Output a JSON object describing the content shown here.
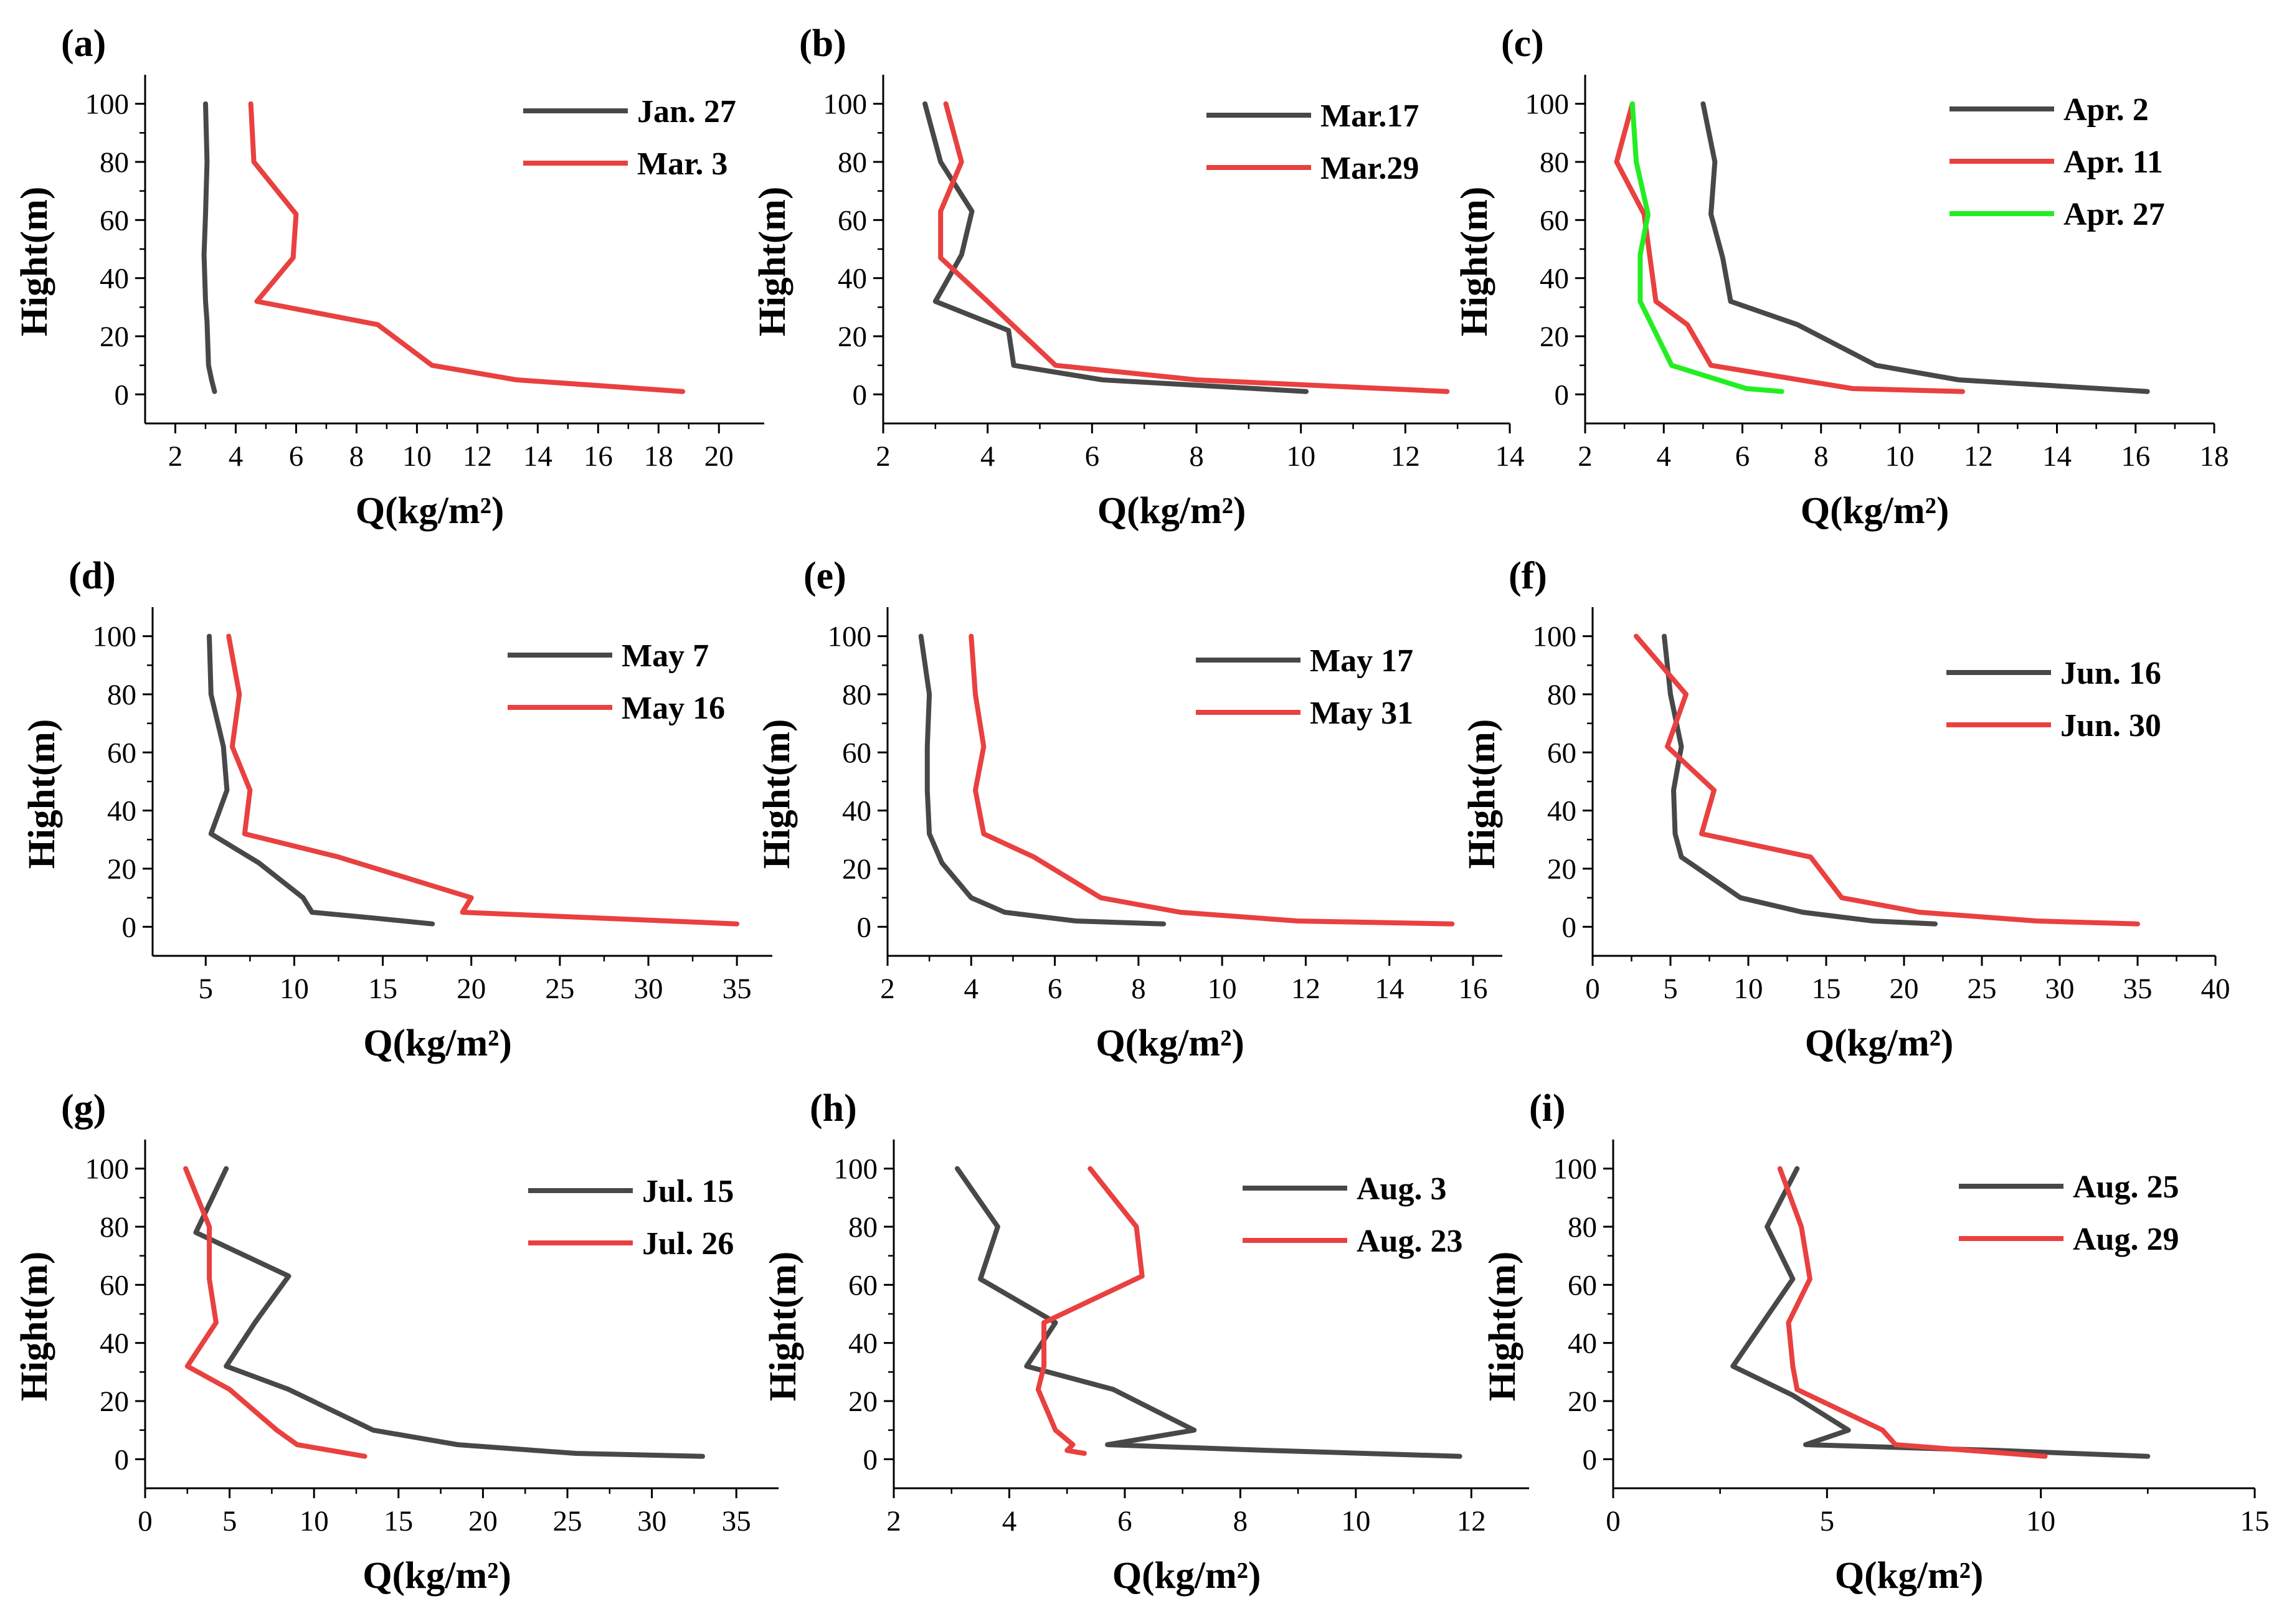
{
  "chart_data": [
    {
      "id": "a",
      "type": "line",
      "panel_label": "(a)",
      "xlabel": "Q(kg/m²)",
      "ylabel": "Hight(m)",
      "xlim": [
        1,
        21.5
      ],
      "ylim": [
        -10,
        110
      ],
      "xticks": [
        2,
        4,
        6,
        8,
        10,
        12,
        14,
        16,
        18,
        20
      ],
      "yticks": [
        0,
        20,
        40,
        60,
        80,
        100
      ],
      "legend_position": "top-right",
      "series": [
        {
          "name": "Jan. 27",
          "color": "#484848",
          "points": [
            [
              3.3,
              1
            ],
            [
              3.2,
              5
            ],
            [
              3.1,
              10
            ],
            [
              3.05,
              25
            ],
            [
              3.0,
              32
            ],
            [
              2.95,
              48
            ],
            [
              3.0,
              62
            ],
            [
              3.05,
              80
            ],
            [
              3.0,
              100
            ]
          ]
        },
        {
          "name": "Mar. 3",
          "color": "#E94040",
          "points": [
            [
              18.8,
              1
            ],
            [
              13.3,
              5
            ],
            [
              10.5,
              10
            ],
            [
              8.7,
              24
            ],
            [
              4.7,
              32
            ],
            [
              5.9,
              47
            ],
            [
              6.0,
              62
            ],
            [
              4.6,
              80
            ],
            [
              4.5,
              100
            ]
          ]
        }
      ]
    },
    {
      "id": "b",
      "type": "line",
      "panel_label": "(b)",
      "xlabel": "Q(kg/m²)",
      "ylabel": "Hight(m)",
      "xlim": [
        2,
        14
      ],
      "ylim": [
        -10,
        110
      ],
      "xticks": [
        2,
        4,
        6,
        8,
        10,
        12,
        14
      ],
      "yticks": [
        0,
        20,
        40,
        60,
        80,
        100
      ],
      "legend_position": "top-right",
      "series": [
        {
          "name": "Mar.17",
          "color": "#484848",
          "points": [
            [
              10.1,
              1
            ],
            [
              6.2,
              5
            ],
            [
              4.5,
              10
            ],
            [
              4.4,
              22
            ],
            [
              3.0,
              32
            ],
            [
              3.5,
              48
            ],
            [
              3.7,
              63
            ],
            [
              3.1,
              80
            ],
            [
              2.8,
              100
            ]
          ]
        },
        {
          "name": "Mar.29",
          "color": "#E94040",
          "points": [
            [
              12.8,
              1
            ],
            [
              8.0,
              5
            ],
            [
              5.3,
              10
            ],
            [
              4.0,
              32
            ],
            [
              3.1,
              47
            ],
            [
              3.1,
              63
            ],
            [
              3.5,
              80
            ],
            [
              3.2,
              100
            ]
          ]
        }
      ]
    },
    {
      "id": "c",
      "type": "line",
      "panel_label": "(c)",
      "xlabel": "Q(kg/m²)",
      "ylabel": "Hight(m)",
      "xlim": [
        2,
        18
      ],
      "ylim": [
        -10,
        110
      ],
      "xticks": [
        2,
        4,
        6,
        8,
        10,
        12,
        14,
        16,
        18
      ],
      "yticks": [
        0,
        20,
        40,
        60,
        80,
        100
      ],
      "legend_position": "top-right",
      "series": [
        {
          "name": "Apr. 2",
          "color": "#484848",
          "points": [
            [
              16.3,
              1
            ],
            [
              11.5,
              5
            ],
            [
              9.4,
              10
            ],
            [
              7.4,
              24
            ],
            [
              5.7,
              32
            ],
            [
              5.5,
              47
            ],
            [
              5.2,
              62
            ],
            [
              5.3,
              80
            ],
            [
              5.0,
              100
            ]
          ]
        },
        {
          "name": "Apr. 11",
          "color": "#E94040",
          "points": [
            [
              11.6,
              1
            ],
            [
              8.8,
              2
            ],
            [
              5.2,
              10
            ],
            [
              4.6,
              24
            ],
            [
              3.8,
              32
            ],
            [
              3.5,
              62
            ],
            [
              2.8,
              80
            ],
            [
              3.2,
              100
            ]
          ]
        },
        {
          "name": "Apr. 27",
          "color": "#22EE22",
          "points": [
            [
              7.0,
              1
            ],
            [
              6.1,
              2
            ],
            [
              4.2,
              10
            ],
            [
              3.4,
              32
            ],
            [
              3.4,
              48
            ],
            [
              3.6,
              62
            ],
            [
              3.3,
              80
            ],
            [
              3.2,
              100
            ]
          ]
        }
      ]
    },
    {
      "id": "d",
      "type": "line",
      "panel_label": "(d)",
      "xlabel": "Q(kg/m²)",
      "ylabel": "Hight(m)",
      "xlim": [
        2,
        37
      ],
      "ylim": [
        -10,
        110
      ],
      "xticks": [
        5,
        10,
        15,
        20,
        25,
        30,
        35
      ],
      "yticks": [
        0,
        20,
        40,
        60,
        80,
        100
      ],
      "legend_position": "top-right",
      "series": [
        {
          "name": "May 7",
          "color": "#484848",
          "points": [
            [
              17.8,
              1
            ],
            [
              14.5,
              3
            ],
            [
              11.0,
              5
            ],
            [
              10.5,
              10
            ],
            [
              8.0,
              22
            ],
            [
              5.3,
              32
            ],
            [
              6.2,
              47
            ],
            [
              6.0,
              62
            ],
            [
              5.3,
              80
            ],
            [
              5.2,
              100
            ]
          ]
        },
        {
          "name": "May 16",
          "color": "#E94040",
          "points": [
            [
              35.0,
              1
            ],
            [
              19.5,
              5
            ],
            [
              20.0,
              10
            ],
            [
              12.5,
              24
            ],
            [
              7.2,
              32
            ],
            [
              7.5,
              47
            ],
            [
              6.5,
              62
            ],
            [
              6.9,
              80
            ],
            [
              6.3,
              100
            ]
          ]
        }
      ]
    },
    {
      "id": "e",
      "type": "line",
      "panel_label": "(e)",
      "xlabel": "Q(kg/m²)",
      "ylabel": "Hight(m)",
      "xlim": [
        2,
        16.7
      ],
      "ylim": [
        -10,
        110
      ],
      "xticks": [
        2,
        4,
        6,
        8,
        10,
        12,
        14,
        16
      ],
      "yticks": [
        0,
        20,
        40,
        60,
        80,
        100
      ],
      "legend_position": "top-right",
      "series": [
        {
          "name": "May 17",
          "color": "#484848",
          "points": [
            [
              8.6,
              1
            ],
            [
              6.5,
              2
            ],
            [
              4.8,
              5
            ],
            [
              4.0,
              10
            ],
            [
              3.3,
              22
            ],
            [
              3.0,
              32
            ],
            [
              2.95,
              47
            ],
            [
              2.95,
              62
            ],
            [
              3.0,
              80
            ],
            [
              2.8,
              100
            ]
          ]
        },
        {
          "name": "May 31",
          "color": "#E94040",
          "points": [
            [
              15.5,
              1
            ],
            [
              11.8,
              2
            ],
            [
              9.0,
              5
            ],
            [
              7.1,
              10
            ],
            [
              5.5,
              24
            ],
            [
              4.3,
              32
            ],
            [
              4.1,
              47
            ],
            [
              4.3,
              62
            ],
            [
              4.1,
              80
            ],
            [
              4.0,
              100
            ]
          ]
        }
      ]
    },
    {
      "id": "f",
      "type": "line",
      "panel_label": "(f)",
      "xlabel": "Q(kg/m²)",
      "ylabel": "Hight(m)",
      "xlim": [
        0,
        40
      ],
      "ylim": [
        -10,
        110
      ],
      "xticks": [
        0,
        5,
        10,
        15,
        20,
        25,
        30,
        35,
        40
      ],
      "yticks": [
        0,
        20,
        40,
        60,
        80,
        100
      ],
      "legend_position": "top-right",
      "series": [
        {
          "name": "Jun. 16",
          "color": "#484848",
          "points": [
            [
              22.0,
              1
            ],
            [
              18.0,
              2
            ],
            [
              13.5,
              5
            ],
            [
              9.5,
              10
            ],
            [
              5.7,
              24
            ],
            [
              5.3,
              32
            ],
            [
              5.2,
              47
            ],
            [
              5.7,
              62
            ],
            [
              5.0,
              80
            ],
            [
              4.6,
              100
            ]
          ]
        },
        {
          "name": "Jun. 30",
          "color": "#E94040",
          "points": [
            [
              35.0,
              1
            ],
            [
              28.5,
              2
            ],
            [
              21.0,
              5
            ],
            [
              16.0,
              10
            ],
            [
              14.0,
              24
            ],
            [
              7.0,
              32
            ],
            [
              7.8,
              47
            ],
            [
              4.8,
              62
            ],
            [
              6.0,
              80
            ],
            [
              2.8,
              100
            ]
          ]
        }
      ]
    },
    {
      "id": "g",
      "type": "line",
      "panel_label": "(g)",
      "xlabel": "Q(kg/m²)",
      "ylabel": "Hight(m)",
      "xlim": [
        0,
        37.5
      ],
      "ylim": [
        -10,
        110
      ],
      "xticks": [
        0,
        5,
        10,
        15,
        20,
        25,
        30,
        35
      ],
      "yticks": [
        0,
        20,
        40,
        60,
        80,
        100
      ],
      "legend_position": "top-right",
      "series": [
        {
          "name": "Jul. 15",
          "color": "#484848",
          "points": [
            [
              33.0,
              1
            ],
            [
              25.5,
              2
            ],
            [
              18.5,
              5
            ],
            [
              13.5,
              10
            ],
            [
              8.5,
              24
            ],
            [
              4.8,
              32
            ],
            [
              6.5,
              47
            ],
            [
              8.5,
              63
            ],
            [
              3.0,
              78
            ],
            [
              4.8,
              100
            ]
          ]
        },
        {
          "name": "Jul. 26",
          "color": "#E94040",
          "points": [
            [
              13.0,
              1
            ],
            [
              9.0,
              5
            ],
            [
              7.8,
              10
            ],
            [
              5.0,
              24
            ],
            [
              2.5,
              32
            ],
            [
              4.2,
              47
            ],
            [
              3.8,
              62
            ],
            [
              3.8,
              80
            ],
            [
              2.4,
              100
            ]
          ]
        }
      ]
    },
    {
      "id": "h",
      "type": "line",
      "panel_label": "(h)",
      "xlabel": "Q(kg/m²)",
      "ylabel": "Hight(m)",
      "xlim": [
        2,
        13
      ],
      "ylim": [
        -10,
        110
      ],
      "xticks": [
        2,
        4,
        6,
        8,
        10,
        12
      ],
      "yticks": [
        0,
        20,
        40,
        60,
        80,
        100
      ],
      "legend_position": "top-right",
      "series": [
        {
          "name": "Aug. 3",
          "color": "#484848",
          "points": [
            [
              11.8,
              1
            ],
            [
              8.5,
              3
            ],
            [
              5.7,
              5
            ],
            [
              7.2,
              10
            ],
            [
              5.8,
              24
            ],
            [
              4.3,
              32
            ],
            [
              4.8,
              47
            ],
            [
              3.5,
              62
            ],
            [
              3.8,
              80
            ],
            [
              3.1,
              100
            ]
          ]
        },
        {
          "name": "Aug. 23",
          "color": "#E94040",
          "points": [
            [
              5.3,
              2
            ],
            [
              5.0,
              3
            ],
            [
              5.1,
              5
            ],
            [
              4.8,
              10
            ],
            [
              4.5,
              24
            ],
            [
              4.6,
              32
            ],
            [
              4.6,
              47
            ],
            [
              6.3,
              63
            ],
            [
              6.2,
              80
            ],
            [
              5.4,
              100
            ]
          ]
        }
      ]
    },
    {
      "id": "i",
      "type": "line",
      "panel_label": "(i)",
      "xlabel": "Q(kg/m²)",
      "ylabel": "Hight(m)",
      "xlim": [
        0,
        15
      ],
      "ylim": [
        -10,
        110
      ],
      "xticks": [
        0,
        5,
        10,
        15
      ],
      "yticks": [
        0,
        20,
        40,
        60,
        80,
        100
      ],
      "legend_position": "top-right",
      "series": [
        {
          "name": "Aug. 25",
          "color": "#484848",
          "points": [
            [
              12.5,
              1
            ],
            [
              9.0,
              3
            ],
            [
              4.5,
              5
            ],
            [
              5.5,
              10
            ],
            [
              4.2,
              22
            ],
            [
              2.8,
              32
            ],
            [
              3.5,
              47
            ],
            [
              4.2,
              62
            ],
            [
              3.6,
              80
            ],
            [
              4.3,
              100
            ]
          ]
        },
        {
          "name": "Aug. 29",
          "color": "#E94040",
          "points": [
            [
              10.1,
              1
            ],
            [
              6.6,
              5
            ],
            [
              6.3,
              10
            ],
            [
              4.3,
              24
            ],
            [
              4.2,
              32
            ],
            [
              4.1,
              47
            ],
            [
              4.6,
              62
            ],
            [
              4.4,
              80
            ],
            [
              3.9,
              100
            ]
          ]
        }
      ]
    }
  ]
}
